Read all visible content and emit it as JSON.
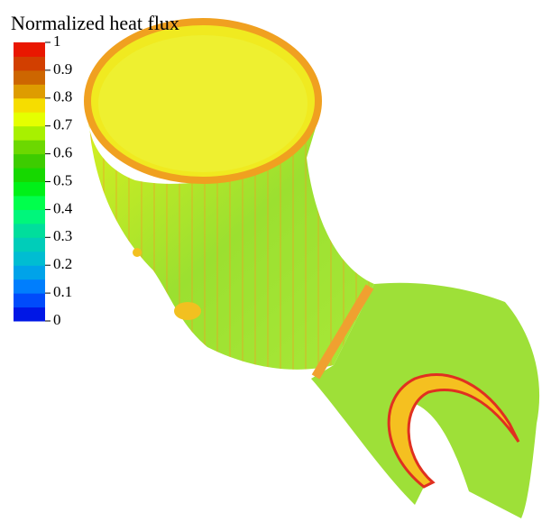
{
  "legend": {
    "title": "Normalized heat flux",
    "ticks": [
      0,
      0.1,
      0.2,
      0.3,
      0.4,
      0.5,
      0.6,
      0.7,
      0.8,
      0.9,
      1
    ]
  }
}
